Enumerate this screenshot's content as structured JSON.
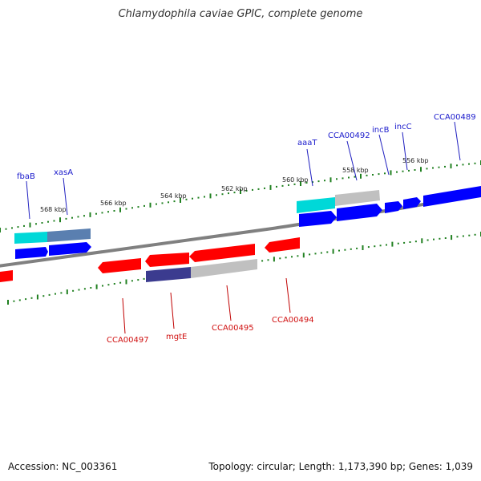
{
  "title": "Chlamydophila caviae GPIC, complete genome",
  "footer": {
    "accession": "Accession: NC_003361",
    "summary": "Topology: circular; Length: 1,173,390 bp; Genes: 1,039"
  },
  "colors": {
    "forward": "#0000ff",
    "reverse": "#ff0000",
    "backbone": "#808080",
    "ticks": "#208020",
    "cyan": "#00d8d8",
    "steel": "#5a7fb0",
    "gray": "#c0c0c0",
    "purple": "#3b3b8f"
  },
  "kbp_labels": [
    "568 kbp",
    "566 kbp",
    "564 kbp",
    "562 kbp",
    "560 kbp",
    "558 kbp",
    "556 kbp"
  ],
  "upper_gene_labels": [
    "fbaB",
    "xasA",
    "aaaT",
    "CCA00492",
    "incB",
    "incC",
    "CCA00489"
  ],
  "lower_gene_labels": [
    "CCA00497",
    "mgtE",
    "CCA00495",
    "CCA00494"
  ]
}
